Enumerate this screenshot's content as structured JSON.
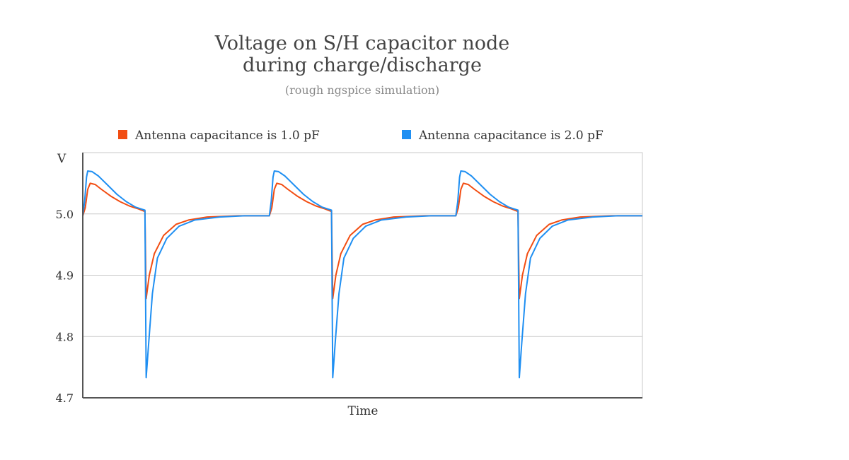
{
  "chart_data": {
    "type": "line",
    "title_line1": "Voltage on S/H capacitor node",
    "title_line2": "during charge/discharge",
    "subtitle": "(rough ngspice simulation)",
    "xlabel": "Time",
    "ylabel": "V",
    "ylim": [
      4.7,
      5.1
    ],
    "yticks": [
      "4.7",
      "4.8",
      "4.9",
      "5.0"
    ],
    "xlim": [
      0,
      9
    ],
    "grid": true,
    "legend_position": "top",
    "series": [
      {
        "name": "Antenna capacitance is 1.0 pF",
        "color": "#f24d12",
        "points": [
          [
            0,
            4.997
          ],
          [
            0.04,
            5.01
          ],
          [
            0.08,
            5.04
          ],
          [
            0.12,
            5.05
          ],
          [
            0.2,
            5.048
          ],
          [
            0.3,
            5.04
          ],
          [
            0.45,
            5.029
          ],
          [
            0.6,
            5.02
          ],
          [
            0.75,
            5.013
          ],
          [
            0.9,
            5.008
          ],
          [
            1.0,
            5.004
          ],
          [
            1.0,
            4.999
          ],
          [
            1.02,
            4.862
          ],
          [
            1.07,
            4.9
          ],
          [
            1.15,
            4.935
          ],
          [
            1.3,
            4.965
          ],
          [
            1.5,
            4.983
          ],
          [
            1.7,
            4.99
          ],
          [
            2.0,
            4.995
          ],
          [
            2.5,
            4.997
          ],
          [
            3.0,
            4.997
          ],
          [
            3.0,
            4.997
          ],
          [
            3.04,
            5.01
          ],
          [
            3.08,
            5.04
          ],
          [
            3.12,
            5.05
          ],
          [
            3.2,
            5.048
          ],
          [
            3.3,
            5.04
          ],
          [
            3.45,
            5.029
          ],
          [
            3.6,
            5.02
          ],
          [
            3.75,
            5.013
          ],
          [
            3.9,
            5.008
          ],
          [
            4.0,
            5.004
          ],
          [
            4.0,
            4.999
          ],
          [
            4.02,
            4.862
          ],
          [
            4.07,
            4.9
          ],
          [
            4.15,
            4.935
          ],
          [
            4.3,
            4.965
          ],
          [
            4.5,
            4.983
          ],
          [
            4.7,
            4.99
          ],
          [
            5.0,
            4.995
          ],
          [
            5.5,
            4.997
          ],
          [
            6.0,
            4.997
          ],
          [
            6.0,
            4.997
          ],
          [
            6.04,
            5.01
          ],
          [
            6.08,
            5.04
          ],
          [
            6.12,
            5.05
          ],
          [
            6.2,
            5.048
          ],
          [
            6.3,
            5.04
          ],
          [
            6.45,
            5.029
          ],
          [
            6.6,
            5.02
          ],
          [
            6.75,
            5.013
          ],
          [
            6.9,
            5.008
          ],
          [
            7.0,
            5.004
          ],
          [
            7.0,
            4.999
          ],
          [
            7.02,
            4.862
          ],
          [
            7.07,
            4.9
          ],
          [
            7.15,
            4.935
          ],
          [
            7.3,
            4.965
          ],
          [
            7.5,
            4.983
          ],
          [
            7.7,
            4.99
          ],
          [
            8.0,
            4.995
          ],
          [
            8.5,
            4.997
          ],
          [
            9.0,
            4.997
          ]
        ]
      },
      {
        "name": "Antenna capacitance is 2.0 pF",
        "color": "#1f8ff2",
        "points": [
          [
            0,
            4.997
          ],
          [
            0.03,
            5.02
          ],
          [
            0.06,
            5.06
          ],
          [
            0.08,
            5.07
          ],
          [
            0.15,
            5.069
          ],
          [
            0.25,
            5.062
          ],
          [
            0.4,
            5.047
          ],
          [
            0.55,
            5.032
          ],
          [
            0.7,
            5.02
          ],
          [
            0.85,
            5.011
          ],
          [
            1.0,
            5.006
          ],
          [
            1.0,
            5.0
          ],
          [
            1.02,
            4.733
          ],
          [
            1.06,
            4.79
          ],
          [
            1.12,
            4.87
          ],
          [
            1.2,
            4.928
          ],
          [
            1.35,
            4.96
          ],
          [
            1.55,
            4.98
          ],
          [
            1.8,
            4.99
          ],
          [
            2.2,
            4.995
          ],
          [
            2.6,
            4.997
          ],
          [
            3.0,
            4.997
          ],
          [
            3.0,
            4.997
          ],
          [
            3.03,
            5.02
          ],
          [
            3.06,
            5.06
          ],
          [
            3.08,
            5.07
          ],
          [
            3.15,
            5.069
          ],
          [
            3.25,
            5.062
          ],
          [
            3.4,
            5.047
          ],
          [
            3.55,
            5.032
          ],
          [
            3.7,
            5.02
          ],
          [
            3.85,
            5.011
          ],
          [
            4.0,
            5.006
          ],
          [
            4.0,
            5.0
          ],
          [
            4.02,
            4.733
          ],
          [
            4.06,
            4.79
          ],
          [
            4.12,
            4.87
          ],
          [
            4.2,
            4.928
          ],
          [
            4.35,
            4.96
          ],
          [
            4.55,
            4.98
          ],
          [
            4.8,
            4.99
          ],
          [
            5.2,
            4.995
          ],
          [
            5.6,
            4.997
          ],
          [
            6.0,
            4.997
          ],
          [
            6.0,
            4.997
          ],
          [
            6.03,
            5.02
          ],
          [
            6.06,
            5.06
          ],
          [
            6.08,
            5.07
          ],
          [
            6.15,
            5.069
          ],
          [
            6.25,
            5.062
          ],
          [
            6.4,
            5.047
          ],
          [
            6.55,
            5.032
          ],
          [
            6.7,
            5.02
          ],
          [
            6.85,
            5.011
          ],
          [
            7.0,
            5.006
          ],
          [
            7.0,
            5.0
          ],
          [
            7.02,
            4.733
          ],
          [
            7.06,
            4.79
          ],
          [
            7.12,
            4.87
          ],
          [
            7.2,
            4.928
          ],
          [
            7.35,
            4.96
          ],
          [
            7.55,
            4.98
          ],
          [
            7.8,
            4.99
          ],
          [
            8.2,
            4.995
          ],
          [
            8.6,
            4.997
          ],
          [
            9.0,
            4.997
          ]
        ]
      }
    ]
  }
}
